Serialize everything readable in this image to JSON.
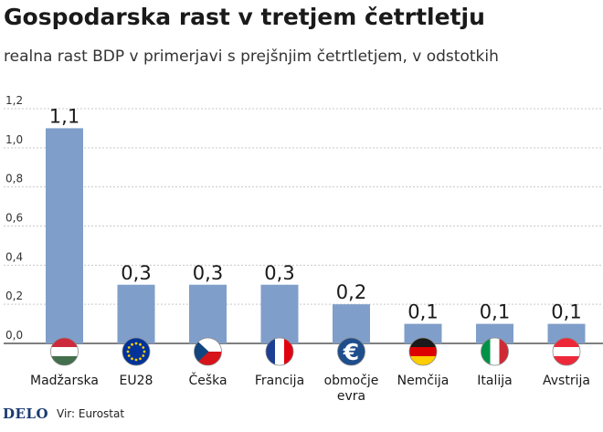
{
  "title": "Gospodarska rast v tretjem četrtletju",
  "subtitle": "realna rast BDP v primerjavi s prejšnjim četrtletjem, v odstotkih",
  "source": "Vir: Eurostat",
  "logo": "DELO",
  "colors": {
    "bar": "#7f9ec9",
    "grid": "#c9c9c9",
    "axis": "#555555",
    "text": "#1a1a1a"
  },
  "chart_data": {
    "type": "bar",
    "categories": [
      "Madžarska",
      "EU28",
      "Češka",
      "Francija",
      "območje evra",
      "Nemčija",
      "Italija",
      "Avstrija"
    ],
    "category_lines": [
      [
        "Madžarska"
      ],
      [
        "EU28"
      ],
      [
        "Češka"
      ],
      [
        "Francija"
      ],
      [
        "območje",
        "evra"
      ],
      [
        "Nemčija"
      ],
      [
        "Italija"
      ],
      [
        "Avstrija"
      ]
    ],
    "values": [
      1.1,
      0.3,
      0.3,
      0.3,
      0.2,
      0.1,
      0.1,
      0.1
    ],
    "value_labels": [
      "1,1",
      "0,3",
      "0,3",
      "0,3",
      "0,2",
      "0,1",
      "0,1",
      "0,1"
    ],
    "flags": [
      "flag-hungary",
      "flag-eu",
      "flag-czech",
      "flag-france",
      "euro-symbol",
      "flag-germany",
      "flag-italy",
      "flag-austria"
    ],
    "yticks": [
      0,
      0.2,
      0.4,
      0.6,
      0.8,
      1.0,
      1.2
    ],
    "ytick_labels": [
      "0,0",
      "0,2",
      "0,4",
      "0,6",
      "0,8",
      "1,0",
      "1,2"
    ],
    "ylim": [
      0,
      1.2
    ],
    "grid": true
  }
}
